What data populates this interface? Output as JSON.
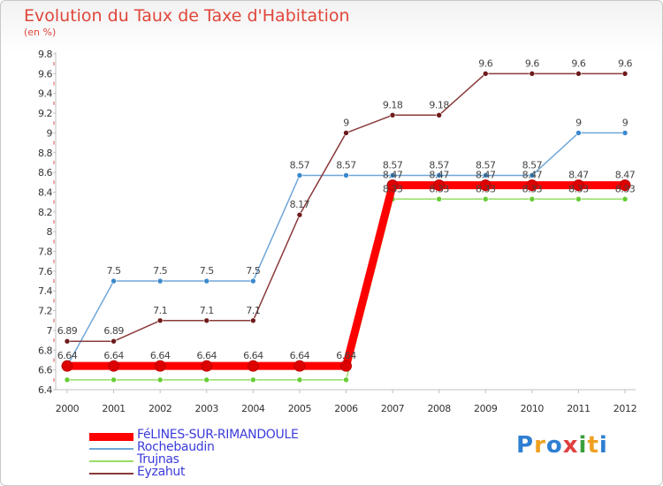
{
  "title": "Evolution du Taux de Taxe d'Habitation",
  "subtitle": "(en %)",
  "logo": {
    "text": "Proxiti",
    "letter_colors": [
      "#2e7fd1",
      "#f0a020",
      "#2e7fd1",
      "#e04040",
      "#3ca03c",
      "#f0a020",
      "#2e7fd1"
    ]
  },
  "chart_data": {
    "type": "line",
    "title": "Evolution du Taux de Taxe d'Habitation",
    "ylabel": "(en %)",
    "xlabel": "",
    "ylim": [
      6.4,
      9.8
    ],
    "grid": false,
    "x": [
      "2000",
      "2001",
      "2002",
      "2003",
      "2004",
      "2005",
      "2006",
      "2007",
      "2008",
      "2009",
      "2010",
      "2011",
      "2012"
    ],
    "yticks": [
      "6.4",
      "6.6",
      "6.8",
      "7",
      "7.2",
      "7.4",
      "7.6",
      "7.8",
      "8",
      "8.2",
      "8.4",
      "8.6",
      "8.8",
      "9",
      "9.2",
      "9.4",
      "9.6",
      "9.8"
    ],
    "series": [
      {
        "name": "Trujnas",
        "color": "#99dd66",
        "marker_color": "#66cc33",
        "line_width": 1.5,
        "values": [
          6.5,
          6.5,
          6.5,
          6.5,
          6.5,
          6.5,
          6.5,
          8.33,
          8.33,
          8.33,
          8.33,
          8.33,
          8.33
        ],
        "labels": [
          "",
          "",
          "",
          "",
          "",
          "",
          "",
          "8.33",
          "8.33",
          "8.33",
          "8.33",
          "8.33",
          "8.33"
        ]
      },
      {
        "name": "Rochebaudin",
        "color": "#6fa6d8",
        "marker_color": "#3a88cc",
        "line_width": 1.5,
        "values": [
          6.64,
          7.5,
          7.5,
          7.5,
          7.5,
          8.57,
          8.57,
          8.57,
          8.57,
          8.57,
          8.57,
          9,
          9
        ],
        "labels": [
          "",
          "7.5",
          "7.5",
          "7.5",
          "7.5",
          "8.57",
          "8.57",
          "8.57",
          "8.57",
          "8.57",
          "8.57",
          "9",
          "9"
        ]
      },
      {
        "name": "Eyzahut",
        "color": "#8a3a3a",
        "marker_color": "#6e1a1a",
        "line_width": 1.5,
        "values": [
          6.89,
          6.89,
          7.1,
          7.1,
          7.1,
          8.17,
          9,
          9.18,
          9.18,
          9.6,
          9.6,
          9.6,
          9.6
        ],
        "labels": [
          "6.89",
          "6.89",
          "7.1",
          "7.1",
          "7.1",
          "8.17",
          "9",
          "9.18",
          "9.18",
          "9.6",
          "9.6",
          "9.6",
          "9.6"
        ]
      },
      {
        "name": "FéLINES-SUR-RIMANDOULE",
        "color": "#ff0000",
        "marker_color": "#dd0000",
        "line_width": 9,
        "values": [
          6.64,
          6.64,
          6.64,
          6.64,
          6.64,
          6.64,
          6.64,
          8.47,
          8.47,
          8.47,
          8.47,
          8.47,
          8.47
        ],
        "labels": [
          "6.64",
          "6.64",
          "6.64",
          "6.64",
          "6.64",
          "6.64",
          "6.64",
          "8.47",
          "8.47",
          "8.47",
          "8.47",
          "8.47",
          "8.47"
        ]
      }
    ],
    "legend_order": [
      "FéLINES-SUR-RIMANDOULE",
      "Rochebaudin",
      "Trujnas",
      "Eyzahut"
    ],
    "legend_position": "bottom-left"
  }
}
